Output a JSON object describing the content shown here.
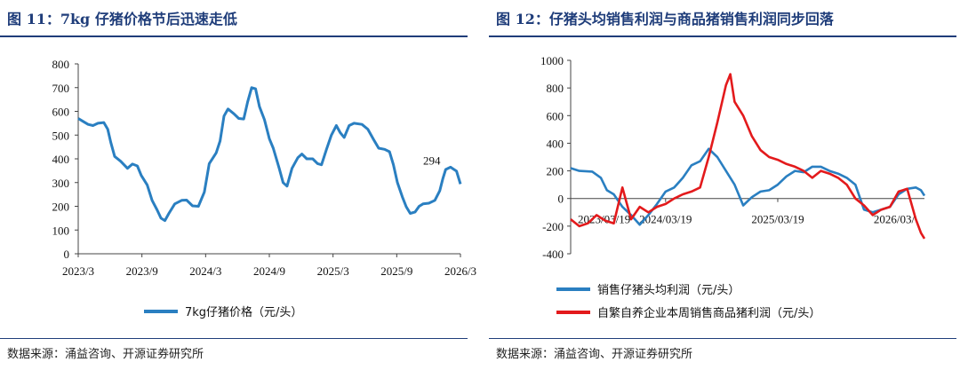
{
  "left": {
    "title": "图 11：7kg 仔猪价格节后迅速走低",
    "source": "数据来源：涌益咨询、开源证券研究所",
    "chart_data": {
      "type": "line",
      "title": "7kg仔猪价格节后迅速走低",
      "ylim": [
        0,
        800
      ],
      "yticks": [
        0,
        100,
        200,
        300,
        400,
        500,
        600,
        700,
        800
      ],
      "xticks": [
        "2023/3",
        "2023/9",
        "2024/3",
        "2024/9",
        "2025/3",
        "2025/9",
        "2026/3"
      ],
      "xrange": [
        0,
        36
      ],
      "annotation": {
        "text": "294",
        "x": 35.6,
        "y": 294
      },
      "series": [
        {
          "name": "7kg仔猪价格（元/头）",
          "color": "#2a7fc1",
          "points": [
            [
              0,
              570
            ],
            [
              0.4,
              560
            ],
            [
              1,
              545
            ],
            [
              1.5,
              540
            ],
            [
              2,
              550
            ],
            [
              2.6,
              553
            ],
            [
              3,
              525
            ],
            [
              3.3,
              470
            ],
            [
              3.7,
              410
            ],
            [
              4.3,
              390
            ],
            [
              5,
              360
            ],
            [
              5.5,
              378
            ],
            [
              6,
              370
            ],
            [
              6.4,
              330
            ],
            [
              7,
              290
            ],
            [
              7.5,
              225
            ],
            [
              8,
              185
            ],
            [
              8.4,
              150
            ],
            [
              8.8,
              140
            ],
            [
              9.2,
              170
            ],
            [
              9.8,
              210
            ],
            [
              10.5,
              225
            ],
            [
              11,
              226
            ],
            [
              11.6,
              202
            ],
            [
              12.2,
              200
            ],
            [
              12.8,
              260
            ],
            [
              13.3,
              380
            ],
            [
              14,
              425
            ],
            [
              14.4,
              475
            ],
            [
              14.8,
              580
            ],
            [
              15.2,
              610
            ],
            [
              15.8,
              590
            ],
            [
              16.3,
              570
            ],
            [
              16.8,
              568
            ],
            [
              17.2,
              640
            ],
            [
              17.6,
              700
            ],
            [
              18,
              695
            ],
            [
              18.4,
              620
            ],
            [
              18.9,
              565
            ],
            [
              19.4,
              485
            ],
            [
              19.8,
              445
            ],
            [
              20.4,
              360
            ],
            [
              20.8,
              300
            ],
            [
              21.2,
              285
            ],
            [
              21.7,
              360
            ],
            [
              22.3,
              405
            ],
            [
              22.7,
              420
            ],
            [
              23.2,
              400
            ],
            [
              23.8,
              400
            ],
            [
              24.3,
              380
            ],
            [
              24.7,
              375
            ],
            [
              25.2,
              440
            ],
            [
              25.7,
              500
            ],
            [
              26.2,
              540
            ],
            [
              26.6,
              510
            ],
            [
              27,
              490
            ],
            [
              27.5,
              540
            ],
            [
              28,
              550
            ],
            [
              28.8,
              545
            ],
            [
              29.4,
              525
            ],
            [
              30,
              480
            ],
            [
              30.5,
              445
            ],
            [
              31.1,
              440
            ],
            [
              31.6,
              430
            ],
            [
              32,
              375
            ],
            [
              32.4,
              300
            ],
            [
              32.9,
              240
            ],
            [
              33.3,
              198
            ],
            [
              33.7,
              170
            ],
            [
              34.2,
              176
            ],
            [
              34.6,
              200
            ],
            [
              35,
              210
            ],
            [
              35.6,
              213
            ],
            [
              36.2,
              225
            ],
            [
              36.7,
              265
            ],
            [
              37,
              315
            ],
            [
              37.3,
              355
            ],
            [
              37.8,
              365
            ],
            [
              38.4,
              348
            ],
            [
              38.8,
              294
            ]
          ]
        }
      ]
    }
  },
  "right": {
    "title": "图 12：仔猪头均销售利润与商品猪销售利润同步回落",
    "source": "数据来源：涌益咨询、开源证券研究所",
    "chart_data": {
      "type": "line",
      "title": "仔猪头均销售利润与商品猪销售利润同步回落",
      "ylim": [
        -400,
        1000
      ],
      "yticks": [
        -400,
        -200,
        0,
        200,
        400,
        600,
        800,
        1000
      ],
      "xticks": [
        "2023/03/19",
        "2024/03/19",
        "2025/03/19",
        "2026/03/"
      ],
      "series": [
        {
          "name": "销售仔猪头均利润（元/头）",
          "color": "#2a7fc1",
          "points": [
            [
              0,
              220
            ],
            [
              1,
              200
            ],
            [
              2.5,
              195
            ],
            [
              3.5,
              150
            ],
            [
              4.2,
              60
            ],
            [
              5,
              30
            ],
            [
              6,
              -60
            ],
            [
              7,
              -120
            ],
            [
              8,
              -190
            ],
            [
              9,
              -120
            ],
            [
              10,
              -40
            ],
            [
              11,
              50
            ],
            [
              12,
              80
            ],
            [
              13,
              150
            ],
            [
              14,
              240
            ],
            [
              15,
              270
            ],
            [
              16,
              360
            ],
            [
              17,
              300
            ],
            [
              18,
              200
            ],
            [
              19,
              100
            ],
            [
              20,
              -50
            ],
            [
              21,
              10
            ],
            [
              22,
              50
            ],
            [
              23,
              60
            ],
            [
              24,
              100
            ],
            [
              25,
              160
            ],
            [
              26,
              200
            ],
            [
              27,
              190
            ],
            [
              28,
              230
            ],
            [
              29,
              230
            ],
            [
              30,
              200
            ],
            [
              31,
              180
            ],
            [
              32,
              150
            ],
            [
              33,
              100
            ],
            [
              34,
              -80
            ],
            [
              35,
              -100
            ],
            [
              36,
              -80
            ],
            [
              37,
              -60
            ],
            [
              38,
              30
            ],
            [
              39,
              70
            ],
            [
              40,
              80
            ],
            [
              40.6,
              60
            ],
            [
              41,
              20
            ]
          ]
        },
        {
          "name": "自繁自养企业本周销售商品猪利润（元/头）",
          "color": "#e31a1c",
          "points": [
            [
              0,
              -150
            ],
            [
              1,
              -200
            ],
            [
              2,
              -180
            ],
            [
              3,
              -120
            ],
            [
              4,
              -160
            ],
            [
              5,
              -180
            ],
            [
              6,
              80
            ],
            [
              7,
              -150
            ],
            [
              8,
              -60
            ],
            [
              9,
              -100
            ],
            [
              10,
              -60
            ],
            [
              11,
              -40
            ],
            [
              12,
              0
            ],
            [
              13,
              30
            ],
            [
              14,
              50
            ],
            [
              15,
              80
            ],
            [
              16,
              300
            ],
            [
              17,
              550
            ],
            [
              18,
              820
            ],
            [
              18.5,
              900
            ],
            [
              19,
              700
            ],
            [
              20,
              600
            ],
            [
              21,
              450
            ],
            [
              22,
              350
            ],
            [
              23,
              300
            ],
            [
              24,
              280
            ],
            [
              25,
              250
            ],
            [
              26,
              230
            ],
            [
              27,
              200
            ],
            [
              28,
              150
            ],
            [
              29,
              200
            ],
            [
              30,
              180
            ],
            [
              31,
              150
            ],
            [
              32,
              100
            ],
            [
              33,
              0
            ],
            [
              34,
              -50
            ],
            [
              35,
              -120
            ],
            [
              36,
              -80
            ],
            [
              37,
              -60
            ],
            [
              38,
              50
            ],
            [
              39,
              70
            ],
            [
              40,
              -150
            ],
            [
              40.6,
              -250
            ],
            [
              41,
              -290
            ]
          ]
        }
      ]
    }
  }
}
